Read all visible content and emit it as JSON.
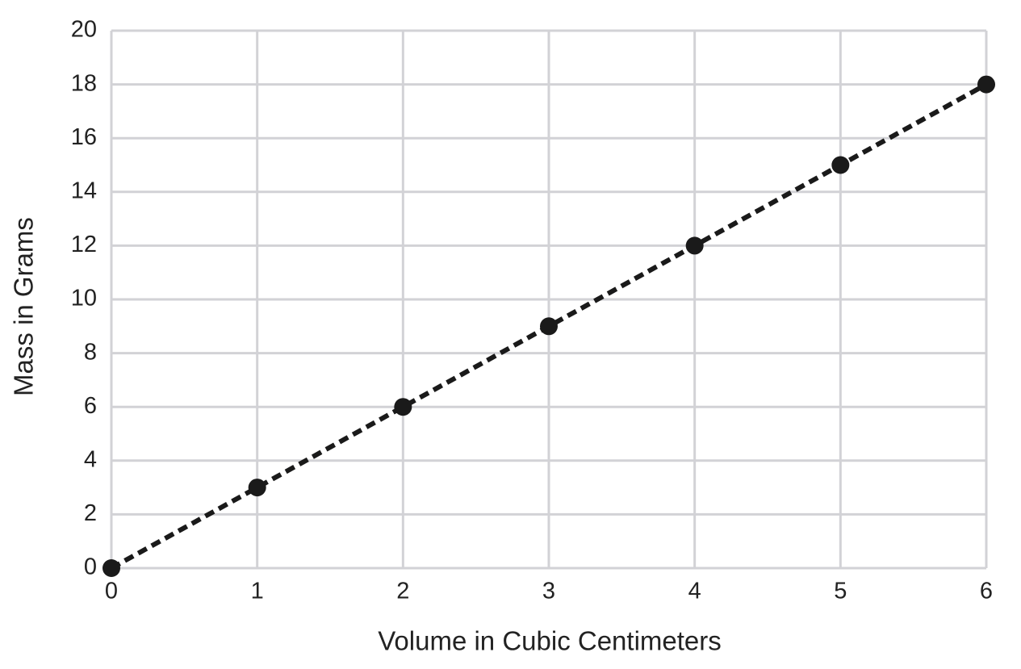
{
  "chart_data": {
    "type": "line",
    "x_label": "Volume in Cubic Centimeters",
    "y_label": "Mass in Grams",
    "x": [
      0,
      1,
      2,
      3,
      4,
      5,
      6
    ],
    "values": [
      0,
      3,
      6,
      9,
      12,
      15,
      18
    ],
    "color": "#1a1a1a",
    "line_style": "dashed",
    "markers": true,
    "xlim": [
      0,
      6
    ],
    "xticks": [
      0,
      1,
      2,
      3,
      4,
      5,
      6
    ],
    "ylim": [
      0,
      20
    ],
    "yticks": [
      0,
      2,
      4,
      6,
      8,
      10,
      12,
      14,
      16,
      18,
      20
    ],
    "grid": true
  }
}
